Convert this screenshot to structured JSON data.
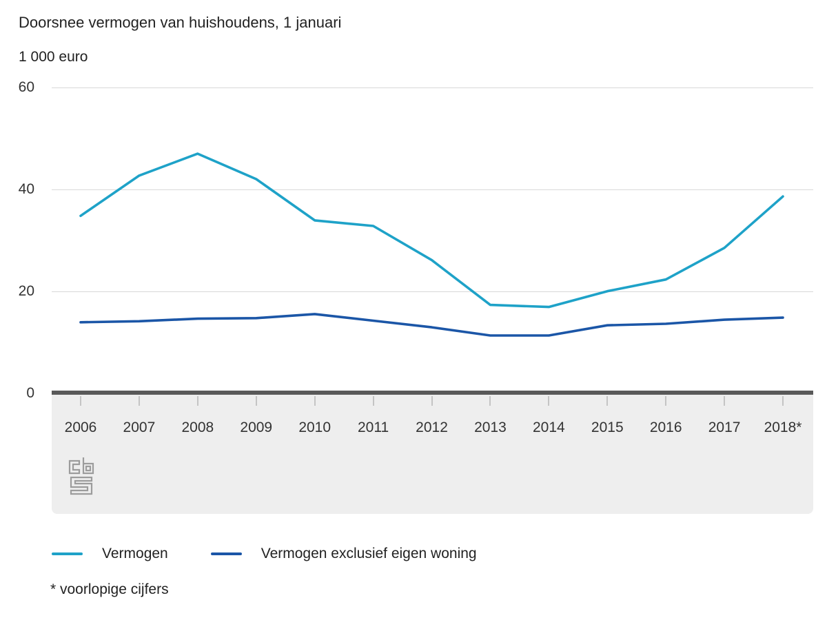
{
  "header": {
    "title": "Doorsnee vermogen van huishoudens, 1 januari",
    "unit_label": "1 000 euro"
  },
  "chart_data": {
    "type": "line",
    "title": "Doorsnee vermogen van huishoudens, 1 januari",
    "ylabel": "1 000 euro",
    "xlabel": "",
    "categories": [
      "2006",
      "2007",
      "2008",
      "2009",
      "2010",
      "2011",
      "2012",
      "2013",
      "2014",
      "2015",
      "2016",
      "2017",
      "2018*"
    ],
    "series": [
      {
        "name": "Vermogen",
        "color": "#1ea2c8",
        "values": [
          34.8,
          42.7,
          47.0,
          42.0,
          33.9,
          32.8,
          26.1,
          17.3,
          16.9,
          20.0,
          22.3,
          28.5,
          38.6
        ]
      },
      {
        "name": "Vermogen exclusief eigen woning",
        "color": "#1b56a7",
        "values": [
          13.9,
          14.1,
          14.6,
          14.7,
          15.5,
          14.2,
          12.9,
          11.3,
          11.3,
          13.3,
          13.6,
          14.4,
          14.8
        ]
      }
    ],
    "ylim": [
      0,
      60
    ],
    "yticks": [
      0,
      20,
      40,
      60
    ],
    "grid": true,
    "legend_position": "bottom"
  },
  "footnote": {
    "text": "* voorlopige cijfers"
  },
  "logo": {
    "name": "cbs-logo"
  },
  "colors": {
    "series1": "#1ea2c8",
    "series2": "#1b56a7",
    "gridline": "#d8d8d8",
    "zero_axis": "#595959",
    "axis_band": "#eeeeee",
    "tick": "#c4c4c4",
    "logo": "#9c9c9c"
  }
}
